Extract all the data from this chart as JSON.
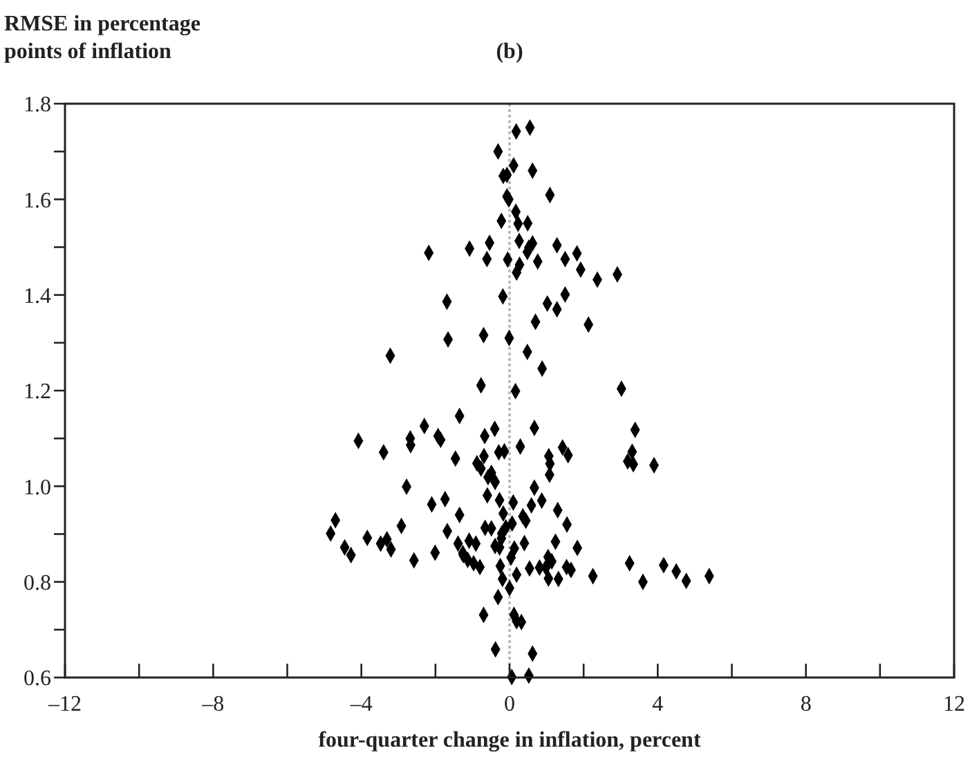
{
  "chart_data": {
    "type": "scatter",
    "title": "(b)",
    "ylabel": "RMSE in percentage points of inflation",
    "xlabel": "four-quarter change in inflation, percent",
    "xlim": [
      -12,
      12
    ],
    "ylim": [
      0.6,
      1.8
    ],
    "xticks": [
      {
        "value": -12,
        "label": "–12"
      },
      {
        "value": -10,
        "label": null
      },
      {
        "value": -8,
        "label": "–8"
      },
      {
        "value": -6,
        "label": null
      },
      {
        "value": -4,
        "label": "–4"
      },
      {
        "value": -2,
        "label": null
      },
      0,
      {
        "value": 2,
        "label": null
      },
      4,
      {
        "value": 6,
        "label": null
      },
      8,
      {
        "value": 10,
        "label": null
      },
      12
    ],
    "yticks": [
      0.6,
      {
        "value": 0.7,
        "label": null
      },
      0.8,
      {
        "value": 0.9,
        "label": null
      },
      {
        "value": 1,
        "label": "1.0"
      },
      {
        "value": 1.1,
        "label": null
      },
      1.2,
      {
        "value": 1.3,
        "label": null
      },
      1.4,
      {
        "value": 1.5,
        "label": null
      },
      1.6,
      {
        "value": 1.7,
        "label": null
      },
      1.8
    ],
    "marker": "diamond",
    "ref_lines": [
      {
        "axis": "x",
        "value": 0,
        "color": "#bbbbbb",
        "line_style": "dotted"
      }
    ],
    "series": [
      {
        "color": "#000000",
        "x": [
          0.18,
          0.55,
          -0.31,
          0.11,
          0.62,
          -0.17,
          -0.07,
          1.09,
          -0.07,
          -0.02,
          0.17,
          -0.22,
          0.23,
          0.49,
          -1.08,
          -0.54,
          0.26,
          0.62,
          0.52,
          0.48,
          1.28,
          1.82,
          -0.61,
          -0.05,
          0.76,
          1.5,
          0.27,
          0.19,
          1.92,
          2.91,
          2.37,
          -0.18,
          1.5,
          1.02,
          1.28,
          0.7,
          2.13,
          -0.7,
          -0.01,
          0.48,
          0.88,
          -0.77,
          0.16,
          3.02,
          0.67,
          3.39,
          -0.4,
          -0.67,
          0.29,
          -0.29,
          -0.14,
          1.43,
          1.58,
          1.06,
          1.09,
          3.31,
          3.19,
          3.34,
          3.9,
          -0.69,
          -0.88,
          -2.18,
          -1.69,
          -1.66,
          -3.22,
          -1.35,
          -2.3,
          -2.68,
          -2.67,
          -1.93,
          -1.86,
          -4.08,
          -3.4,
          -1.46,
          -0.77,
          -0.58,
          -2.78,
          -0.6,
          -2.1,
          -1.74,
          -1.35,
          -4.7,
          -4.83,
          -4.45,
          -4.28,
          -3.84,
          -3.48,
          -3.31,
          -3.2,
          -2.92,
          -2.58,
          -2.01,
          -1.68,
          -1.39,
          -1.09,
          -0.91,
          -1.25,
          -1.13,
          -0.97,
          -0.8,
          -0.66,
          -0.7,
          -1.26,
          1.08,
          -0.49,
          -0.39,
          -0.27,
          0.67,
          0.1,
          0.59,
          0.87,
          1.3,
          -0.17,
          0.36,
          0.44,
          0.07,
          1.55,
          -0.49,
          -0.1,
          -0.21,
          -0.22,
          0.4,
          1.24,
          1.83,
          -0.39,
          -0.27,
          0.13,
          0.04,
          1.04,
          1.14,
          0.81,
          0.98,
          0.54,
          -0.25,
          0.19,
          -0.19,
          1.05,
          1.32,
          1.54,
          1.66,
          2.25,
          3.24,
          3.6,
          4.16,
          4.5,
          4.77,
          5.39,
          0,
          -0.31,
          0.12,
          0.19,
          0.32,
          -0.38,
          0.62,
          0.06,
          0.52
        ],
        "values": [
          1.742,
          1.75,
          1.7,
          1.671,
          1.66,
          1.649,
          1.651,
          1.609,
          1.606,
          1.6,
          1.574,
          1.555,
          1.549,
          1.55,
          1.497,
          1.509,
          1.513,
          1.508,
          1.499,
          1.49,
          1.504,
          1.487,
          1.475,
          1.474,
          1.47,
          1.475,
          1.463,
          1.447,
          1.453,
          1.443,
          1.432,
          1.397,
          1.401,
          1.382,
          1.37,
          1.344,
          1.338,
          1.316,
          1.31,
          1.281,
          1.246,
          1.211,
          1.199,
          1.204,
          1.122,
          1.118,
          1.12,
          1.105,
          1.083,
          1.071,
          1.073,
          1.081,
          1.065,
          1.063,
          1.047,
          1.072,
          1.052,
          1.046,
          1.044,
          1.063,
          1.048,
          1.488,
          1.386,
          1.307,
          1.273,
          1.147,
          1.126,
          1.1,
          1.086,
          1.105,
          1.097,
          1.095,
          1.071,
          1.058,
          1.037,
          1.019,
          0.999,
          0.981,
          0.962,
          0.973,
          0.94,
          0.929,
          0.901,
          0.872,
          0.856,
          0.892,
          0.88,
          0.889,
          0.868,
          0.917,
          0.845,
          0.861,
          0.906,
          0.88,
          0.886,
          0.88,
          0.856,
          0.846,
          0.839,
          0.831,
          0.913,
          0.731,
          0.86,
          1.024,
          1.028,
          1.009,
          0.971,
          0.997,
          0.966,
          0.96,
          0.97,
          0.95,
          0.943,
          0.937,
          0.928,
          0.922,
          0.92,
          0.912,
          0.914,
          0.901,
          0.891,
          0.881,
          0.884,
          0.871,
          0.875,
          0.872,
          0.87,
          0.851,
          0.852,
          0.843,
          0.83,
          0.83,
          0.828,
          0.833,
          0.815,
          0.806,
          0.807,
          0.806,
          0.831,
          0.825,
          0.812,
          0.839,
          0.8,
          0.835,
          0.822,
          0.802,
          0.812,
          0.787,
          0.768,
          0.731,
          0.718,
          0.716,
          0.659,
          0.65,
          0.601,
          0.604
        ]
      }
    ]
  }
}
